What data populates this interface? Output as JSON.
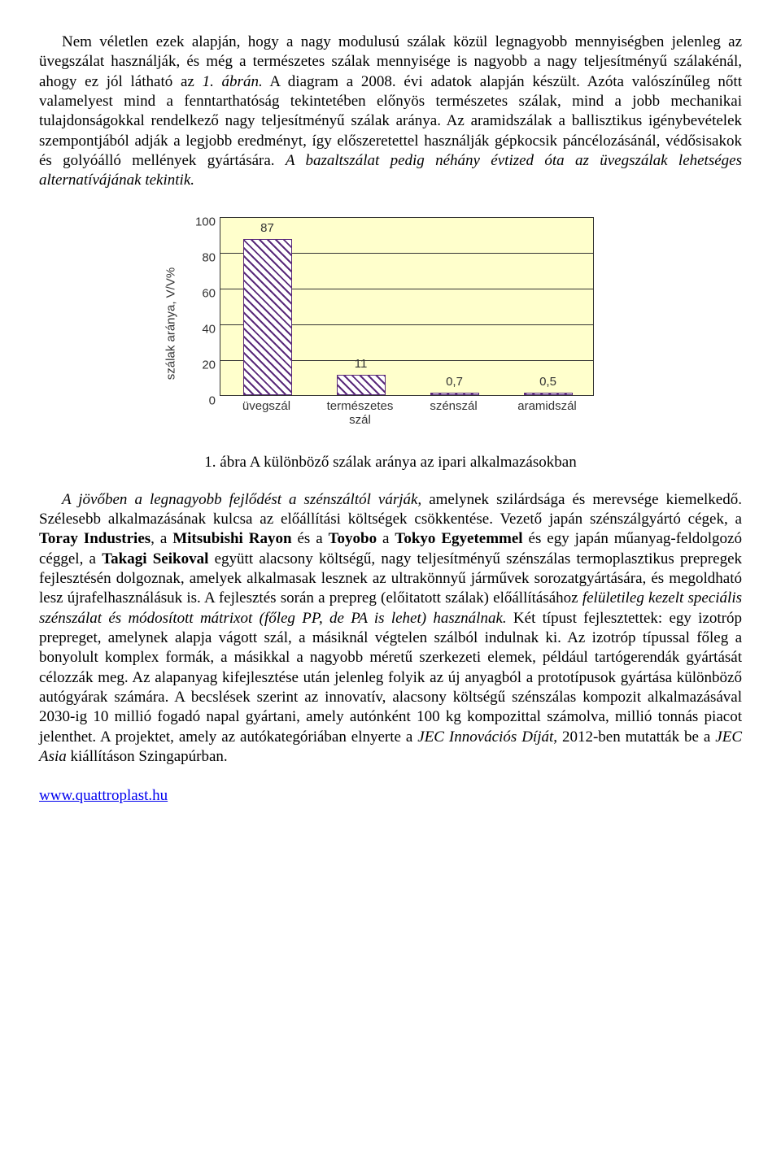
{
  "para1": "Nem véletlen ezek alapján, hogy a nagy modulusú szálak közül legnagyobb mennyiségben jelenleg az üvegszálat használják, és még a természetes szálak mennyisége is nagyobb a nagy teljesítményű szálakénál, ahogy ez jól látható az ",
  "para1_italic1": "1. ábrán.",
  "para1_cont": " A diagram a 2008. évi adatok alapján készült. Azóta valószínűleg nőtt valamelyest mind a fenntarthatóság tekintetében előnyös természetes szálak, mind a jobb mechanikai tulajdonságokkal rendelkező nagy teljesítményű szálak aránya. Az aramidszálak a ballisztikus igénybevételek szempontjából adják a legjobb eredményt, így előszeretettel használják gépkocsik páncélozásánál, védősisakok és golyóálló mellények gyártására. ",
  "para1_italic2": "A bazaltszálat pedig néhány évtized óta az üvegszálak lehetséges alternatívájának tekintik.",
  "chart": {
    "type": "bar",
    "yaxis_label": "szálak aránya, V/V%",
    "yticks": [
      0,
      20,
      40,
      60,
      80,
      100
    ],
    "ymax": 100,
    "categories": [
      "üvegszál",
      "természetes\nszál",
      "szénszál",
      "aramidszál"
    ],
    "values": [
      87,
      11,
      0.7,
      0.5
    ],
    "value_labels": [
      "87",
      "11",
      "0,7",
      "0,5"
    ],
    "bar_color": "#5a2a7a",
    "background": "#ffffcc",
    "grid_color": "#333333"
  },
  "caption": "1. ábra A különböző szálak aránya az ipari alkalmazásokban",
  "para2_italic1": "A jövőben a legnagyobb fejlődést a szénszáltól várják,",
  "para2_a": " amelynek szilárdsága és merevsége kiemelkedő. Szélesebb alkalmazásának kulcsa az előállítási költségek csökkentése. Vezető japán szénszálgyártó cégek, a ",
  "para2_b1": "Toray Industries",
  "para2_c": ", a ",
  "para2_b2": "Mitsubishi Rayon",
  "para2_d": " és a ",
  "para2_b3": "Toyobo",
  "para2_e": " a ",
  "para2_b4": "Tokyo Egyetemmel",
  "para2_f": " és egy japán műanyag-feldolgozó céggel, a ",
  "para2_b5": "Takagi Seikoval",
  "para2_g": " együtt alacsony költségű, nagy teljesítményű szénszálas termoplasztikus prepregek fejlesztésén dolgoznak, amelyek alkalmasak lesznek az ultrakönnyű járművek sorozatgyártására, és megoldható lesz újrafelhasználásuk is. A fejlesztés során a prepreg (előitatott szálak) előállításához ",
  "para2_italic2": "felületileg kezelt speciális szénszálat és módosított mátrixot (főleg PP, de PA is lehet) használnak.",
  "para2_h": " Két típust fejlesztettek: egy izotróp prepreget, amelynek alapja vágott szál, a másiknál végtelen szálból indulnak ki. Az izotróp típussal főleg a bonyolult komplex formák, a másikkal a nagyobb méretű szerkezeti elemek, például tartógerendák gyártását célozzák meg. Az alapanyag kifejlesztése után jelenleg folyik az új anyagból a prototípusok gyártása különböző autógyárak számára. A becslések szerint az innovatív, alacsony költségű szénszálas kompozit alkalmazásával 2030-ig 10 millió fogadó napal gyártani, amely autónként 100 kg kompozittal számolva, millió tonnás piacot jelenthet. A projektet, amely az autókategóriában elnyerte a ",
  "para2_italic3": "JEC Innovációs Díját",
  "para2_i": ", 2012-ben mutatták be a ",
  "para2_italic4": "JEC Asia",
  "para2_j": " kiállításon Szingapúrban.",
  "link": "www.quattroplast.hu"
}
